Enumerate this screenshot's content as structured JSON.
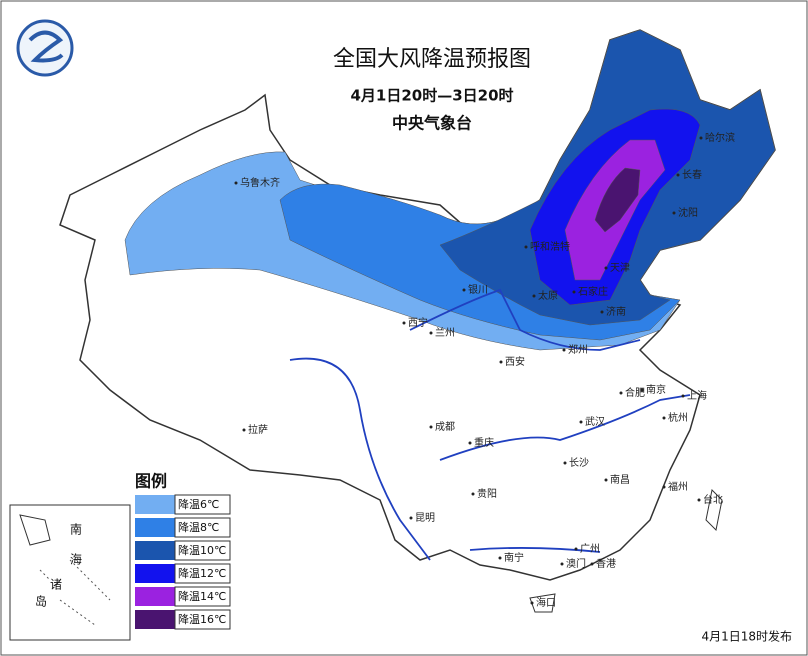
{
  "header": {
    "title": "全国大风降温预报图",
    "period": "4月1日20时—3日20时",
    "agency": "中央气象台"
  },
  "legend": {
    "title": "图例",
    "items": [
      {
        "label": "降温6℃",
        "color": "#72aef2"
      },
      {
        "label": "降温8℃",
        "color": "#2f80e6"
      },
      {
        "label": "降温10℃",
        "color": "#1b55ae"
      },
      {
        "label": "降温12℃",
        "color": "#1212ee"
      },
      {
        "label": "降温14℃",
        "color": "#9b22e0"
      },
      {
        "label": "降温16℃",
        "color": "#4a1470"
      }
    ]
  },
  "cities": [
    "乌鲁木齐",
    "哈尔滨",
    "长春",
    "沈阳",
    "呼和浩特",
    "天津",
    "太原",
    "石家庄",
    "济南",
    "银川",
    "西宁",
    "兰州",
    "西安",
    "郑州",
    "南京",
    "合肥",
    "上海",
    "杭州",
    "武汉",
    "拉萨",
    "成都",
    "重庆",
    "长沙",
    "南昌",
    "贵阳",
    "福州",
    "台北",
    "昆明",
    "南宁",
    "广州",
    "澳门",
    "香港",
    "海口"
  ],
  "inset": {
    "labels": [
      "南",
      "海",
      "诸",
      "岛"
    ]
  },
  "footer": {
    "issued": "4月1日18时发布"
  }
}
